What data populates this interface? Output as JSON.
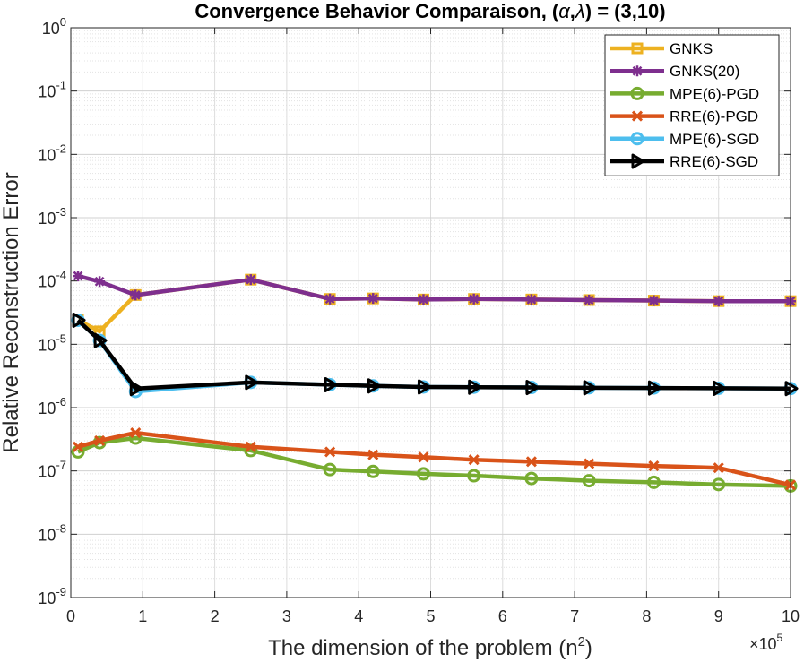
{
  "chart_data": {
    "type": "line",
    "title_prefix": "Convergence Behavior Comparaison, (",
    "title_alpha": "α",
    "title_sep": ",",
    "title_lambda": "λ",
    "title_suffix": ") = (3,10)",
    "xlabel_main": "The dimension of the problem (n",
    "xlabel_sup": "2",
    "xlabel_end": ")",
    "ylabel": "Relative Reconstruction Error",
    "x_scale_base": "×10",
    "x_scale_exp": "5",
    "xlim": [
      0,
      10
    ],
    "ylim_exp": [
      -9,
      0
    ],
    "x_ticks": [
      "0",
      "1",
      "2",
      "3",
      "4",
      "5",
      "6",
      "7",
      "8",
      "9",
      "10"
    ],
    "y_tick_base": "10",
    "y_tick_exps": [
      "0",
      "-1",
      "-2",
      "-3",
      "-4",
      "-5",
      "-6",
      "-7",
      "-8",
      "-9"
    ],
    "grid": true,
    "legend_position": "top-right",
    "x": [
      0.1,
      0.4,
      0.9,
      2.5,
      3.6,
      4.2,
      4.9,
      5.6,
      6.4,
      7.2,
      8.1,
      9.0,
      10.0
    ],
    "series": [
      {
        "name": "GNKS",
        "color": "#EDB120",
        "marker": "square",
        "values": [
          2.4e-05,
          1.6e-05,
          6e-05,
          0.000105,
          5.2e-05,
          5.3e-05,
          5.1e-05,
          5.2e-05,
          5.1e-05,
          5e-05,
          4.9e-05,
          4.8e-05,
          4.8e-05
        ]
      },
      {
        "name": "GNKS(20)",
        "color": "#7E2F8E",
        "marker": "star",
        "values": [
          0.00012,
          9.8e-05,
          6e-05,
          0.000105,
          5.2e-05,
          5.3e-05,
          5.1e-05,
          5.2e-05,
          5.1e-05,
          5e-05,
          4.9e-05,
          4.8e-05,
          4.8e-05
        ]
      },
      {
        "name": "MPE(6)-PGD",
        "color": "#77AC30",
        "marker": "circle",
        "values": [
          2e-07,
          2.8e-07,
          3.3e-07,
          2.1e-07,
          1.05e-07,
          9.8e-08,
          9e-08,
          8.4e-08,
          7.6e-08,
          7e-08,
          6.6e-08,
          6.1e-08,
          5.8e-08
        ]
      },
      {
        "name": "RRE(6)-PGD",
        "color": "#D95319",
        "marker": "x",
        "values": [
          2.4e-07,
          3e-07,
          4e-07,
          2.4e-07,
          2e-07,
          1.8e-07,
          1.65e-07,
          1.5e-07,
          1.4e-07,
          1.3e-07,
          1.2e-07,
          1.12e-07,
          6e-08
        ]
      },
      {
        "name": "MPE(6)-SGD",
        "color": "#4DBEEE",
        "marker": "circle",
        "values": [
          2.4e-05,
          1.15e-05,
          1.8e-06,
          2.5e-06,
          2.3e-06,
          2.2e-06,
          2.12e-06,
          2.1e-06,
          2.08e-06,
          2.06e-06,
          2.04e-06,
          2.02e-06,
          2e-06
        ]
      },
      {
        "name": "RRE(6)-SGD",
        "color": "#000000",
        "marker": "triangle-right",
        "values": [
          2.4e-05,
          1.15e-05,
          2e-06,
          2.5e-06,
          2.3e-06,
          2.2e-06,
          2.12e-06,
          2.1e-06,
          2.08e-06,
          2.06e-06,
          2.04e-06,
          2.02e-06,
          2e-06
        ]
      }
    ]
  }
}
